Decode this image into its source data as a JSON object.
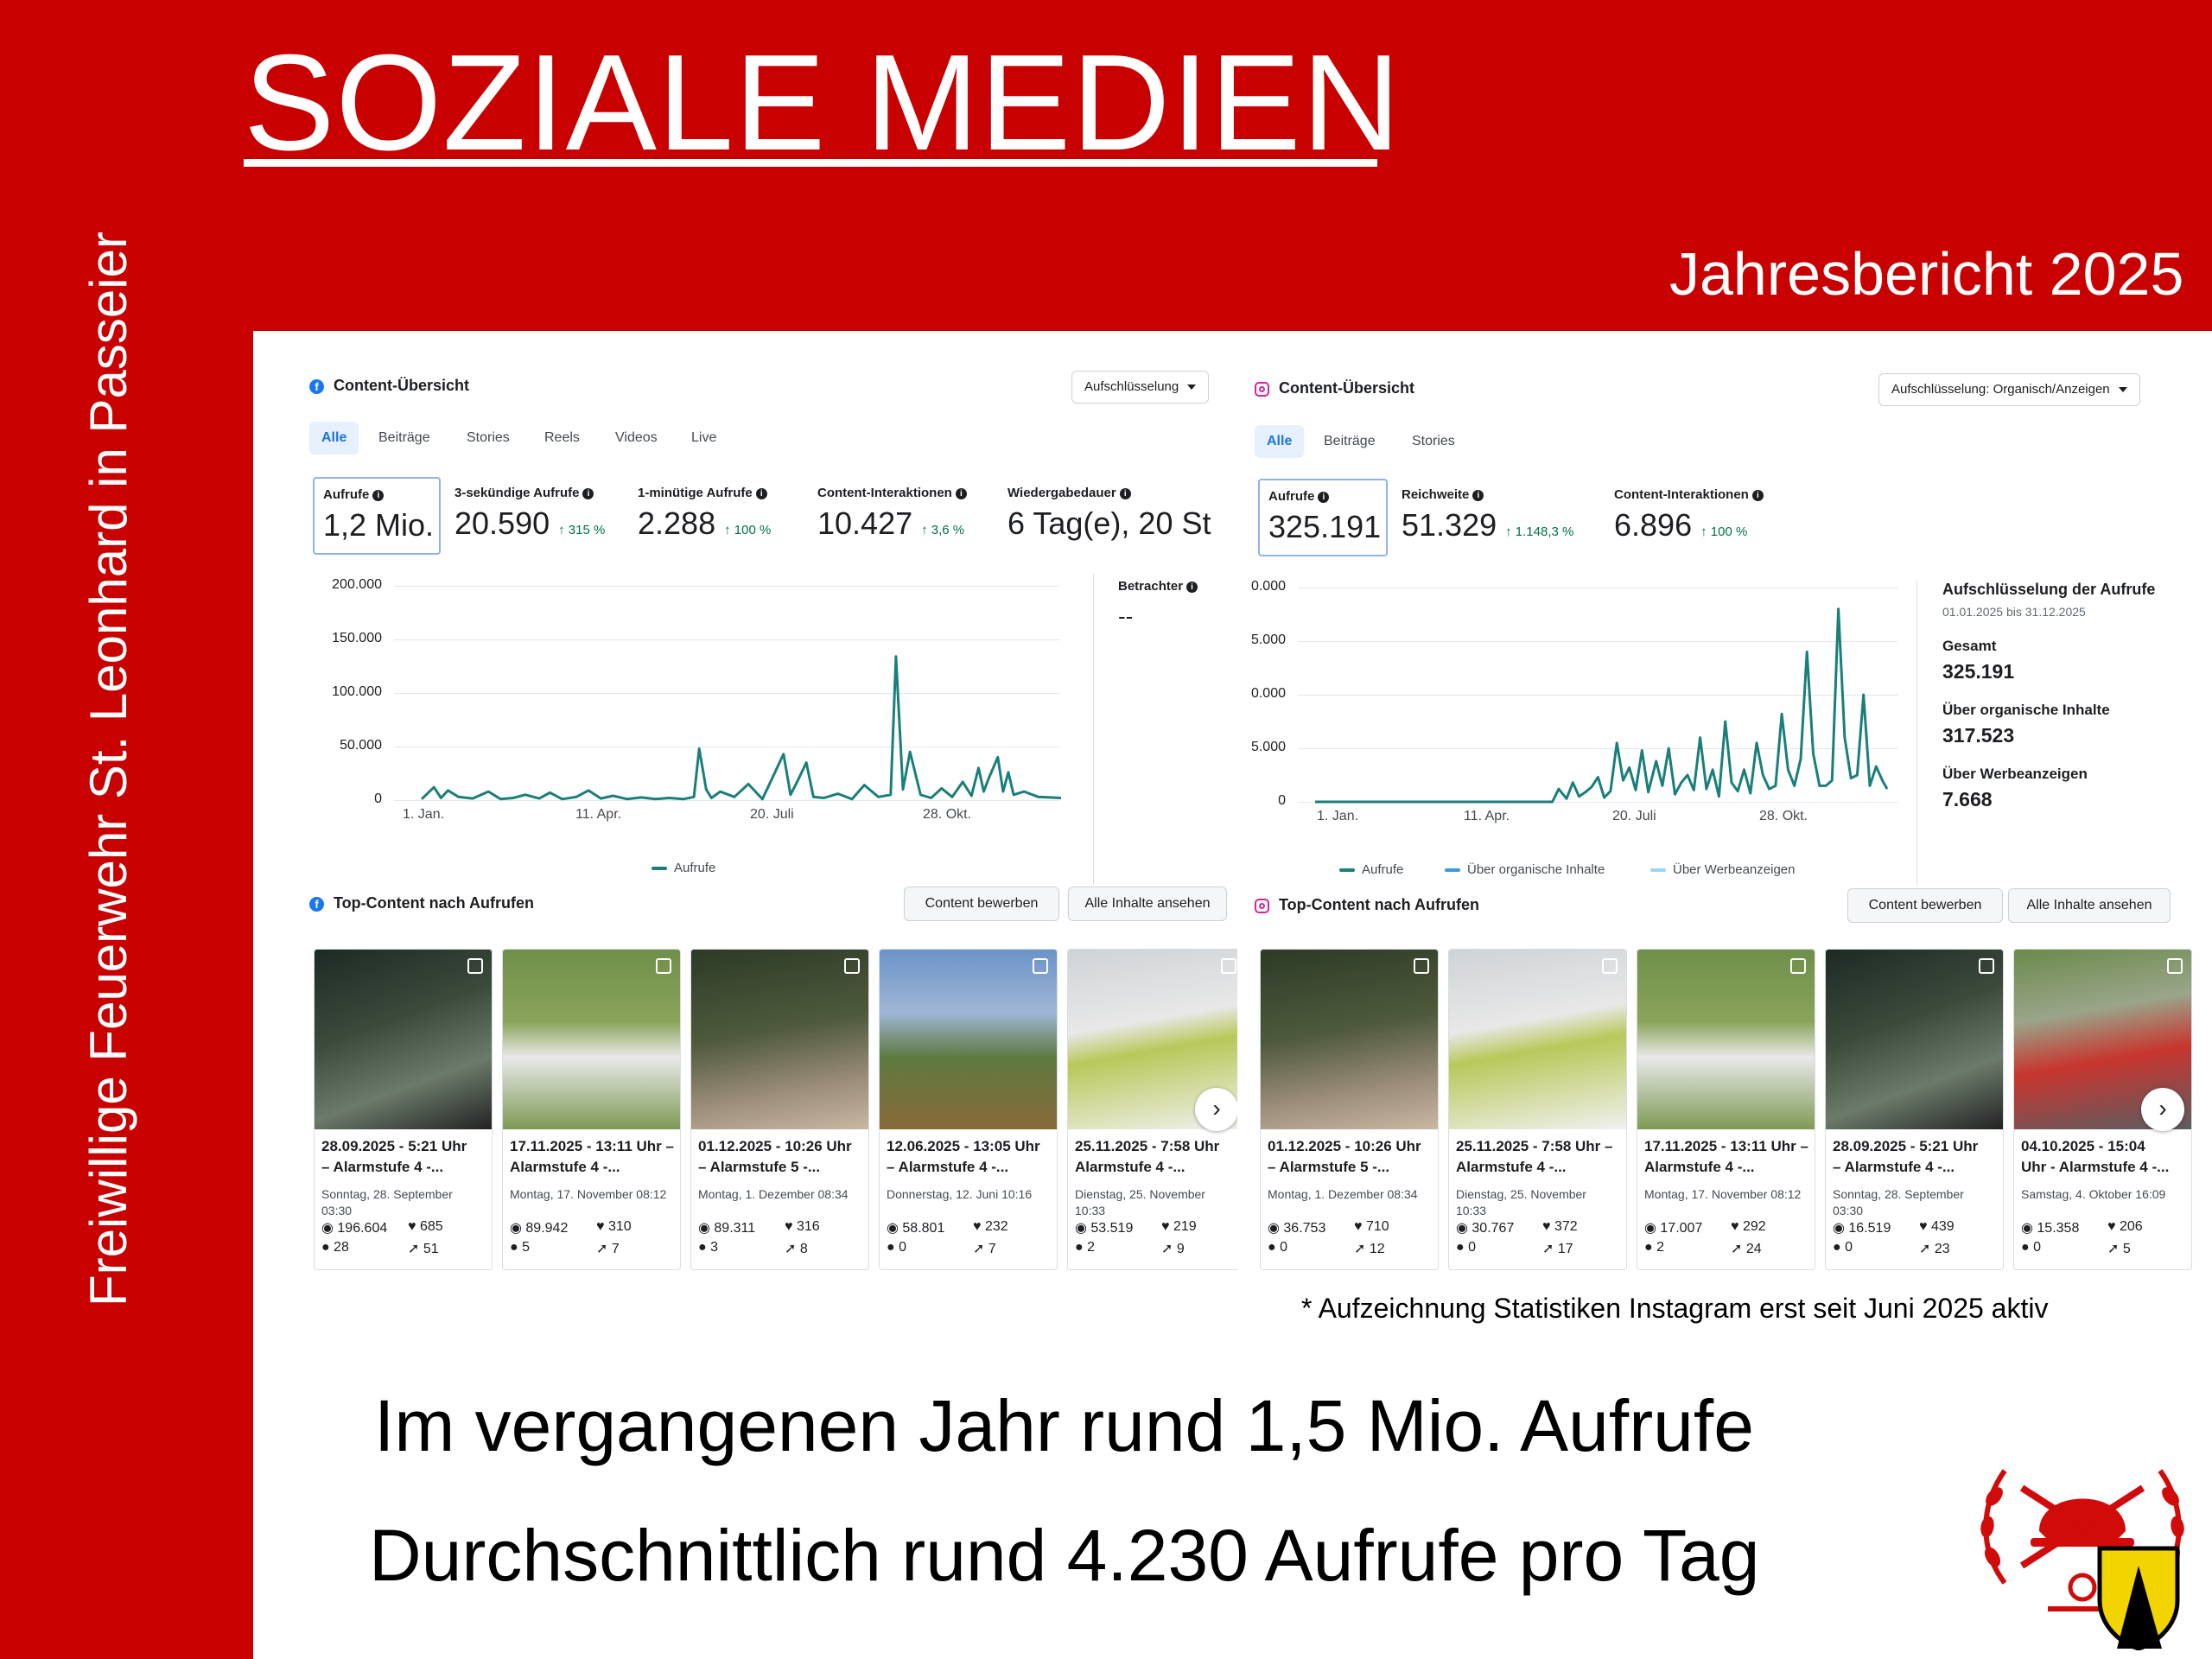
{
  "slide": {
    "title": "SOZIALE MEDIEN",
    "subtitle": "Jahresbericht 2025",
    "side_text": "Freiwillige Feuerwehr St. Leonhard in Passeier",
    "footnote": "* Aufzeichnung Statistiken Instagram erst seit Juni 2025 aktiv",
    "line1": "Im vergangenen Jahr rund 1,5 Mio. Aufrufe",
    "line2": "Durchschnittlich rund 4.230 Aufrufe pro Tag"
  },
  "colors": {
    "slide_red": "#c80000",
    "chart_teal": "#1a7f7a",
    "fb_blue": "#1877f2",
    "ig_pink": "#d6249f",
    "ig_series2": "#3b99d6",
    "ig_series3": "#9fd4ef"
  },
  "facebook": {
    "title": "Content-Übersicht",
    "dropdown": "Aufschlüsselung",
    "tabs": [
      "Alle",
      "Beiträge",
      "Stories",
      "Reels",
      "Videos",
      "Live"
    ],
    "metrics": [
      {
        "label": "Aufrufe",
        "value": "1,2 Mio.",
        "change": ""
      },
      {
        "label": "3-sekündige Aufrufe",
        "value": "20.590",
        "change": "↑ 315 %"
      },
      {
        "label": "1-minütige Aufrufe",
        "value": "2.288",
        "change": "↑ 100 %"
      },
      {
        "label": "Content-Interaktionen",
        "value": "10.427",
        "change": "↑ 3,6 %"
      },
      {
        "label": "Wiedergabedauer",
        "value": "6 Tag(e), 20 St",
        "change": ""
      }
    ],
    "viewers_label": "Betrachter",
    "viewers_value": "--",
    "top_title": "Top-Content nach Aufrufen",
    "btn_promote": "Content bewerben",
    "btn_all": "Alle Inhalte ansehen",
    "posts": [
      {
        "t1": "28.09.2025 - 5:21 Uhr",
        "t2": "– Alarmstufe 4 -...",
        "d1": "Sonntag, 28. September",
        "d2": "03:30",
        "views": "196.604",
        "likes": "685",
        "comments": "28",
        "shares": "51"
      },
      {
        "t1": "17.11.2025 - 13:11 Uhr –",
        "t2": "Alarmstufe 4 -...",
        "d1": "Montag, 17. November 08:12",
        "d2": "",
        "views": "89.942",
        "likes": "310",
        "comments": "5",
        "shares": "7"
      },
      {
        "t1": "01.12.2025 - 10:26 Uhr",
        "t2": "– Alarmstufe 5 -...",
        "d1": "Montag, 1. Dezember 08:34",
        "d2": "",
        "views": "89.311",
        "likes": "316",
        "comments": "3",
        "shares": "8"
      },
      {
        "t1": "12.06.2025 - 13:05 Uhr",
        "t2": "– Alarmstufe 4 -...",
        "d1": "Donnerstag, 12. Juni 10:16",
        "d2": "",
        "views": "58.801",
        "likes": "232",
        "comments": "0",
        "shares": "7"
      },
      {
        "t1": "25.11.2025 - 7:58 Uhr",
        "t2": "Alarmstufe 4 -...",
        "d1": "Dienstag, 25. November",
        "d2": "10:33",
        "views": "53.519",
        "likes": "219",
        "comments": "2",
        "shares": "9"
      }
    ]
  },
  "instagram": {
    "title": "Content-Übersicht",
    "dropdown": "Aufschlüsselung: Organisch/Anzeigen",
    "tabs": [
      "Alle",
      "Beiträge",
      "Stories"
    ],
    "metrics": [
      {
        "label": "Aufrufe",
        "value": "325.191",
        "change": ""
      },
      {
        "label": "Reichweite",
        "value": "51.329",
        "change": "↑ 1.148,3 %"
      },
      {
        "label": "Content-Interaktionen",
        "value": "6.896",
        "change": "↑ 100 %"
      }
    ],
    "breakdown": {
      "title": "Aufschlüsselung der Aufrufe",
      "range": "01.01.2025 bis 31.12.2025",
      "items": [
        {
          "label": "Gesamt",
          "value": "325.191"
        },
        {
          "label": "Über organische Inhalte",
          "value": "317.523"
        },
        {
          "label": "Über Werbeanzeigen",
          "value": "7.668"
        }
      ]
    },
    "top_title": "Top-Content nach Aufrufen",
    "btn_promote": "Content bewerben",
    "btn_all": "Alle Inhalte ansehen",
    "posts": [
      {
        "t1": "01.12.2025 - 10:26 Uhr",
        "t2": "– Alarmstufe 5 -...",
        "d1": "Montag, 1. Dezember 08:34",
        "d2": "",
        "views": "36.753",
        "likes": "710",
        "comments": "0",
        "shares": "12"
      },
      {
        "t1": "25.11.2025 - 7:58 Uhr –",
        "t2": "Alarmstufe 4 -...",
        "d1": "Dienstag, 25. November",
        "d2": "10:33",
        "views": "30.767",
        "likes": "372",
        "comments": "0",
        "shares": "17"
      },
      {
        "t1": "17.11.2025 - 13:11 Uhr –",
        "t2": "Alarmstufe 4 -...",
        "d1": "Montag, 17. November 08:12",
        "d2": "",
        "views": "17.007",
        "likes": "292",
        "comments": "2",
        "shares": "24"
      },
      {
        "t1": "28.09.2025 - 5:21 Uhr",
        "t2": "– Alarmstufe 4 -...",
        "d1": "Sonntag, 28. September",
        "d2": "03:30",
        "views": "16.519",
        "likes": "439",
        "comments": "0",
        "shares": "23"
      },
      {
        "t1": "04.10.2025 - 15:04",
        "t2": "Uhr - Alarmstufe 4 -...",
        "d1": "Samstag, 4. Oktober 16:09",
        "d2": "",
        "views": "15.358",
        "likes": "206",
        "comments": "0",
        "shares": "5"
      }
    ]
  },
  "chart_data": [
    {
      "type": "line",
      "yticks": [
        "200.000",
        "150.000",
        "100.000",
        "50.000",
        "0"
      ],
      "ylim": [
        0,
        200000
      ],
      "xticks": [
        "1. Jan.",
        "11. Apr.",
        "20. Juli",
        "28. Okt."
      ],
      "legend_position": "bottom",
      "series": [
        {
          "name": "Aufrufe",
          "x": [
            "2025-01-01",
            "2025-01-08",
            "2025-01-12",
            "2025-01-16",
            "2025-01-22",
            "2025-01-30",
            "2025-02-08",
            "2025-02-15",
            "2025-02-22",
            "2025-03-01",
            "2025-03-09",
            "2025-03-15",
            "2025-03-22",
            "2025-03-30",
            "2025-04-06",
            "2025-04-13",
            "2025-04-20",
            "2025-04-28",
            "2025-05-06",
            "2025-05-14",
            "2025-05-22",
            "2025-05-30",
            "2025-06-05",
            "2025-06-08",
            "2025-06-12",
            "2025-06-15",
            "2025-06-20",
            "2025-06-28",
            "2025-07-06",
            "2025-07-14",
            "2025-07-20",
            "2025-07-26",
            "2025-07-30",
            "2025-08-03",
            "2025-08-08",
            "2025-08-12",
            "2025-08-18",
            "2025-08-26",
            "2025-09-03",
            "2025-09-10",
            "2025-09-18",
            "2025-09-25",
            "2025-09-28",
            "2025-10-02",
            "2025-10-06",
            "2025-10-12",
            "2025-10-18",
            "2025-10-24",
            "2025-10-30",
            "2025-11-05",
            "2025-11-10",
            "2025-11-14",
            "2025-11-17",
            "2025-11-20",
            "2025-11-25",
            "2025-11-28",
            "2025-12-01",
            "2025-12-04",
            "2025-12-10",
            "2025-12-18",
            "2025-12-31"
          ],
          "y": [
            1000,
            12000,
            2000,
            9000,
            3000,
            1500,
            8000,
            1000,
            2000,
            5000,
            1500,
            7000,
            1000,
            3000,
            9000,
            1500,
            4000,
            1000,
            2500,
            1000,
            2000,
            1000,
            3000,
            48000,
            10000,
            2000,
            8000,
            3000,
            15000,
            1000,
            22000,
            43000,
            5000,
            18000,
            35000,
            3000,
            2000,
            6000,
            1000,
            14000,
            3000,
            5000,
            134000,
            10000,
            45000,
            5000,
            2000,
            11000,
            3000,
            17000,
            4000,
            30000,
            8000,
            21000,
            40000,
            8000,
            26000,
            5000,
            8000,
            3000,
            2000
          ]
        }
      ]
    },
    {
      "type": "line",
      "yticks": [
        "0.000",
        "5.000",
        "0.000",
        "5.000",
        "0"
      ],
      "ylim": [
        0,
        20000
      ],
      "xticks": [
        "1. Jan.",
        "11. Apr.",
        "20. Juli",
        "28. Okt."
      ],
      "legend_position": "bottom",
      "series": [
        {
          "name": "Aufrufe",
          "x": [
            "2025-01-01",
            "2025-06-01",
            "2025-06-05",
            "2025-06-10",
            "2025-06-14",
            "2025-06-18",
            "2025-06-22",
            "2025-06-26",
            "2025-06-30",
            "2025-07-04",
            "2025-07-08",
            "2025-07-12",
            "2025-07-16",
            "2025-07-20",
            "2025-07-24",
            "2025-07-28",
            "2025-08-01",
            "2025-08-06",
            "2025-08-10",
            "2025-08-14",
            "2025-08-18",
            "2025-08-22",
            "2025-08-26",
            "2025-08-30",
            "2025-09-03",
            "2025-09-07",
            "2025-09-11",
            "2025-09-15",
            "2025-09-19",
            "2025-09-23",
            "2025-09-27",
            "2025-10-01",
            "2025-10-05",
            "2025-10-09",
            "2025-10-13",
            "2025-10-17",
            "2025-10-21",
            "2025-10-25",
            "2025-10-29",
            "2025-11-02",
            "2025-11-06",
            "2025-11-10",
            "2025-11-14",
            "2025-11-18",
            "2025-11-22",
            "2025-11-26",
            "2025-11-30",
            "2025-12-04",
            "2025-12-08",
            "2025-12-12",
            "2025-12-16",
            "2025-12-20",
            "2025-12-24",
            "2025-12-28",
            "2025-12-31"
          ],
          "y": [
            0,
            0,
            1200,
            300,
            1800,
            500,
            900,
            1400,
            2300,
            400,
            1000,
            5500,
            2000,
            3200,
            1100,
            4800,
            900,
            3800,
            1500,
            5000,
            700,
            1800,
            2500,
            1100,
            6000,
            1200,
            3000,
            500,
            7500,
            1800,
            1000,
            3000,
            800,
            5500,
            2500,
            1200,
            1500,
            8200,
            3000,
            1500,
            4000,
            14000,
            4500,
            1500,
            1500,
            2000,
            18000,
            6000,
            2200,
            2500,
            10000,
            1500,
            3300,
            2000,
            1200
          ]
        },
        {
          "name": "Über organische Inhalte"
        },
        {
          "name": "Über Werbeanzeigen"
        }
      ]
    }
  ]
}
